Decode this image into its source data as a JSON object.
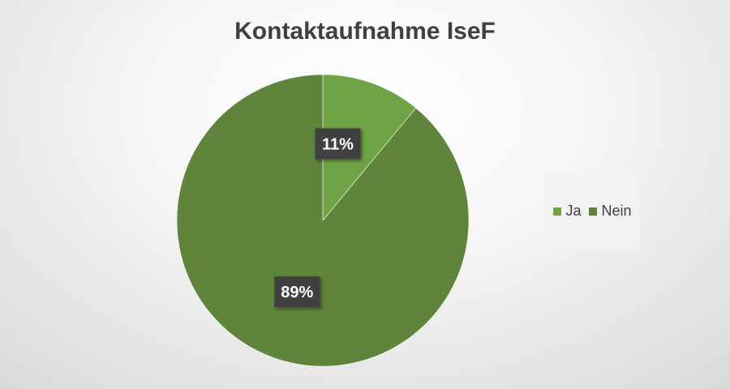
{
  "chart_data": {
    "type": "pie",
    "title": "Kontaktaufnahme IseF",
    "categories": [
      "Ja",
      "Nein"
    ],
    "values": [
      11,
      89
    ],
    "data_labels": [
      "11%",
      "89%"
    ],
    "colors": [
      "#70a346",
      "#5f843b"
    ],
    "legend_position": "right"
  }
}
